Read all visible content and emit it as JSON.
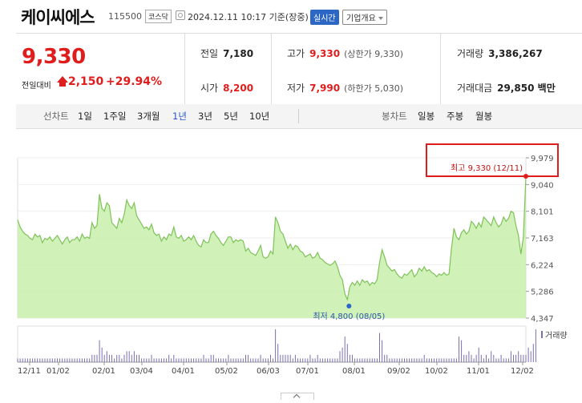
{
  "header": {
    "name": "케이씨에스",
    "code": "115500",
    "market": "코스닥",
    "timestamp": "2024.12.11 10:17 기준(장중)",
    "realtime_label": "실시간",
    "company_label": "기업개요"
  },
  "price": {
    "current": "9,330",
    "change_label": "전일대비",
    "change": "2,150",
    "change_pct": "+29.94%"
  },
  "stats": {
    "prev_close": {
      "label": "전일",
      "value": "7,180"
    },
    "open": {
      "label": "시가",
      "value": "8,200"
    },
    "high": {
      "label": "고가",
      "value": "9,330",
      "sub": "(상한가 9,330)"
    },
    "low": {
      "label": "저가",
      "value": "7,990",
      "sub": "(하한가 5,030)"
    },
    "volume": {
      "label": "거래량",
      "value": "3,386,267"
    },
    "amount": {
      "label": "거래대금",
      "value": "29,850 백만"
    }
  },
  "tabs": {
    "line_label": "선차트",
    "line": [
      "1일",
      "1주일",
      "3개월",
      "1년",
      "3년",
      "5년",
      "10년"
    ],
    "active": "1년",
    "candle_label": "봉차트",
    "candle": [
      "일봉",
      "주봉",
      "월봉"
    ]
  },
  "chart_data": {
    "type": "area",
    "y_ticks": [
      "9,979",
      "9,040",
      "8,101",
      "7,163",
      "6,224",
      "5,286",
      "4,347"
    ],
    "ylim": [
      4347,
      9979
    ],
    "x_ticks": [
      "12/11",
      "01/02",
      "02/01",
      "03/04",
      "04/01",
      "05/02",
      "06/03",
      "07/01",
      "08/01",
      "09/02",
      "10/02",
      "11/01",
      "12/02"
    ],
    "high_annotation": "최고 9,330 (12/11)",
    "low_annotation": "최저 4,800 (08/05)",
    "volume_label": "거래량",
    "area_color": "#c8efaa",
    "line_color": "#7fc25a",
    "highlight_color": "#e01d1d",
    "series": [
      7800,
      7550,
      7400,
      7300,
      7250,
      7150,
      7100,
      7300,
      7200,
      7250,
      7000,
      7150,
      7100,
      7200,
      7050,
      7150,
      7250,
      7100,
      6950,
      7100,
      7200,
      7000,
      7100,
      7100,
      7200,
      7050,
      7300,
      7150,
      7200,
      7150,
      7700,
      7500,
      7600,
      8700,
      8200,
      8100,
      8400,
      8300,
      7700,
      7600,
      7500,
      7850,
      7700,
      8000,
      8500,
      8300,
      8200,
      8400,
      7950,
      7800,
      7650,
      7500,
      7550,
      7450,
      7650,
      7350,
      7250,
      7300,
      7050,
      7200,
      7100,
      7300,
      7250,
      7550,
      7200,
      7150,
      7250,
      7050,
      7100,
      7200,
      7100,
      7250,
      7050,
      6900,
      6850,
      7100,
      7000,
      7000,
      7300,
      7400,
      7250,
      7150,
      7000,
      6900,
      7050,
      7200,
      7200,
      7000,
      7100,
      7050,
      7100,
      7050,
      6700,
      6800,
      6650,
      6600,
      6550,
      6700,
      6900,
      6500,
      6450,
      6500,
      6700,
      6600,
      7900,
      7700,
      7400,
      7300,
      7050,
      6800,
      6950,
      6750,
      6900,
      6850,
      6700,
      6650,
      6500,
      6550,
      6600,
      6450,
      6500,
      6650,
      6450,
      6400,
      6300,
      6250,
      6200,
      6250,
      6350,
      6150,
      5850,
      5700,
      5200,
      5000,
      5450,
      5600,
      5500,
      5650,
      5500,
      5700,
      5600,
      5650,
      5500,
      5600,
      5550,
      5700,
      6300,
      6750,
      6500,
      6200,
      6100,
      6000,
      6050,
      5900,
      5800,
      5750,
      5900,
      5850,
      5950,
      6050,
      5800,
      5900,
      6100,
      6000,
      6150,
      6000,
      6050,
      5950,
      5900,
      5800,
      5900,
      5850,
      5950,
      5850,
      5900,
      6800,
      7500,
      7200,
      7100,
      7350,
      7450,
      7300,
      7400,
      7750,
      7650,
      7500,
      7700,
      7550,
      7900,
      7800,
      7700,
      7600,
      7900,
      7700,
      7550,
      7650,
      7900,
      7750,
      7850,
      8100,
      8050,
      7600,
      7250,
      6600,
      7200,
      9330
    ],
    "volume": [
      1,
      1,
      1,
      1,
      1,
      1,
      1,
      1,
      1,
      1,
      1,
      1,
      1,
      1,
      1,
      1,
      1,
      1,
      1,
      1,
      1,
      1,
      1,
      1,
      1,
      1,
      1,
      1,
      1,
      1,
      2,
      2,
      2,
      6,
      4,
      2,
      3,
      2,
      2,
      1,
      2,
      2,
      1,
      2,
      3,
      3,
      2,
      3,
      2,
      2,
      1,
      1,
      1,
      1,
      2,
      1,
      1,
      1,
      1,
      1,
      1,
      2,
      1,
      2,
      1,
      1,
      1,
      1,
      1,
      1,
      1,
      1,
      1,
      1,
      1,
      2,
      1,
      1,
      2,
      2,
      1,
      1,
      1,
      1,
      1,
      2,
      1,
      1,
      1,
      1,
      1,
      1,
      2,
      2,
      1,
      1,
      1,
      1,
      2,
      1,
      1,
      1,
      2,
      1,
      9,
      5,
      2,
      2,
      2,
      2,
      2,
      1,
      2,
      1,
      1,
      1,
      1,
      1,
      2,
      1,
      1,
      2,
      1,
      1,
      1,
      1,
      1,
      1,
      1,
      1,
      3,
      4,
      7,
      5,
      2,
      2,
      1,
      1,
      1,
      1,
      1,
      1,
      1,
      1,
      1,
      1,
      8,
      6,
      2,
      2,
      1,
      1,
      1,
      1,
      1,
      1,
      1,
      1,
      1,
      1,
      1,
      1,
      1,
      1,
      2,
      1,
      1,
      1,
      1,
      1,
      1,
      1,
      1,
      1,
      1,
      1,
      1,
      1,
      7,
      6,
      2,
      2,
      3,
      2,
      1,
      2,
      4,
      2,
      1,
      2,
      1,
      3,
      2,
      1,
      1,
      2,
      1,
      1,
      1,
      3,
      2,
      2,
      3,
      2,
      2,
      2,
      4,
      3,
      5,
      9
    ]
  }
}
